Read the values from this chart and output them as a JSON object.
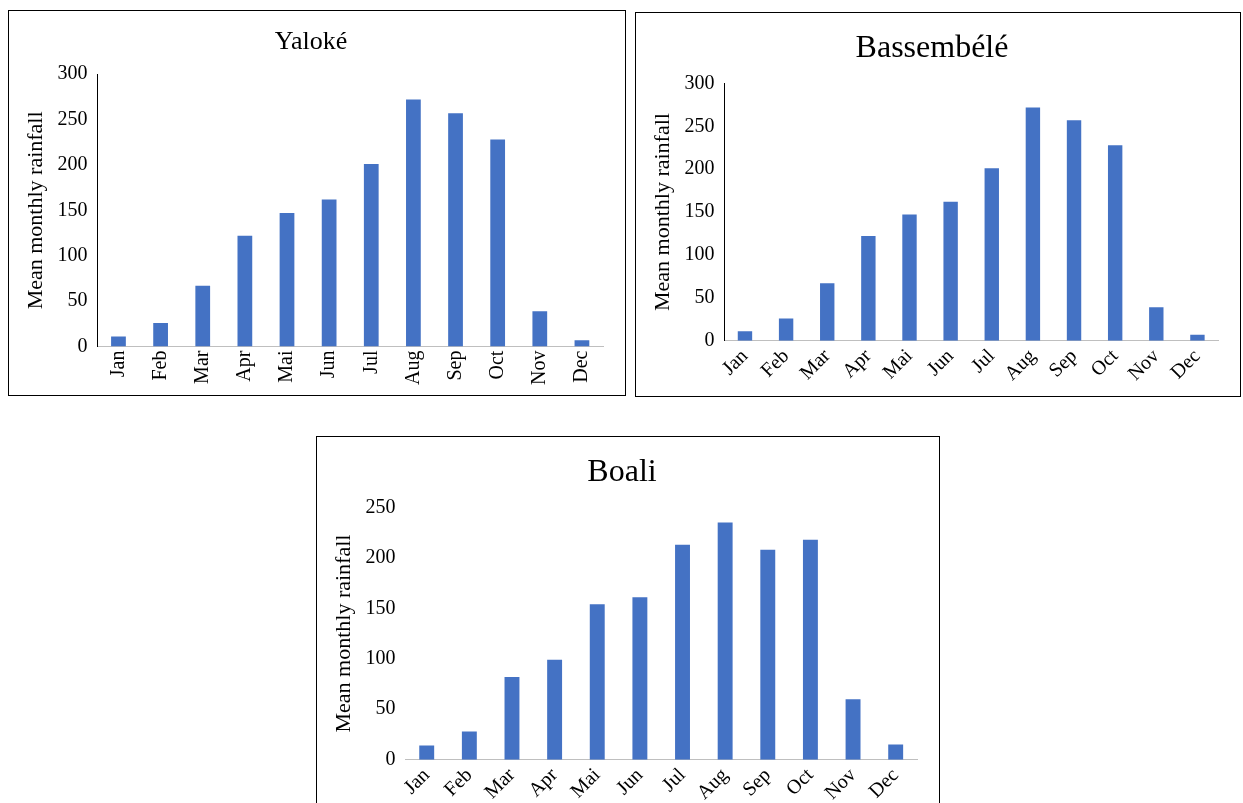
{
  "chart_data": [
    {
      "type": "bar",
      "title": "Yaloké",
      "ylabel": "Mean monthly rainfall",
      "categories": [
        "Jan",
        "Feb",
        "Mar",
        "Apr",
        "Mai",
        "Jun",
        "Jul",
        "Aug",
        "Sep",
        "Oct",
        "Nov",
        "Dec"
      ],
      "values": [
        11,
        26,
        67,
        122,
        147,
        162,
        201,
        272,
        257,
        228,
        39,
        7
      ],
      "color": "#4472c4",
      "ylim": [
        0,
        300
      ],
      "yticks": [
        0,
        50,
        100,
        150,
        200,
        250,
        300
      ],
      "grid": false
    },
    {
      "type": "bar",
      "title": "Bassembélé",
      "ylabel": "Mean monthly rainfall",
      "categories": [
        "Jan",
        "Feb",
        "Mar",
        "Apr",
        "Mai",
        "Jun",
        "Jul",
        "Aug",
        "Sep",
        "Oct",
        "Nov",
        "Dec"
      ],
      "values": [
        11,
        26,
        67,
        122,
        147,
        162,
        201,
        272,
        257,
        228,
        39,
        7
      ],
      "color": "#4472c4",
      "ylim": [
        0,
        300
      ],
      "yticks": [
        0,
        50,
        100,
        150,
        200,
        250,
        300
      ],
      "grid": false
    },
    {
      "type": "bar",
      "title": "Boali",
      "ylabel": "Mean monthly rainfall",
      "categories": [
        "Jan",
        "Feb",
        "Mar",
        "Apr",
        "Mai",
        "Jun",
        "Jul",
        "Aug",
        "Sep",
        "Oct",
        "Nov",
        "Dec"
      ],
      "values": [
        14,
        28,
        82,
        99,
        154,
        161,
        213,
        235,
        208,
        218,
        60,
        15
      ],
      "color": "#4472c4",
      "ylim": [
        0,
        250
      ],
      "yticks": [
        0,
        50,
        100,
        150,
        200,
        250
      ],
      "grid": false
    }
  ]
}
